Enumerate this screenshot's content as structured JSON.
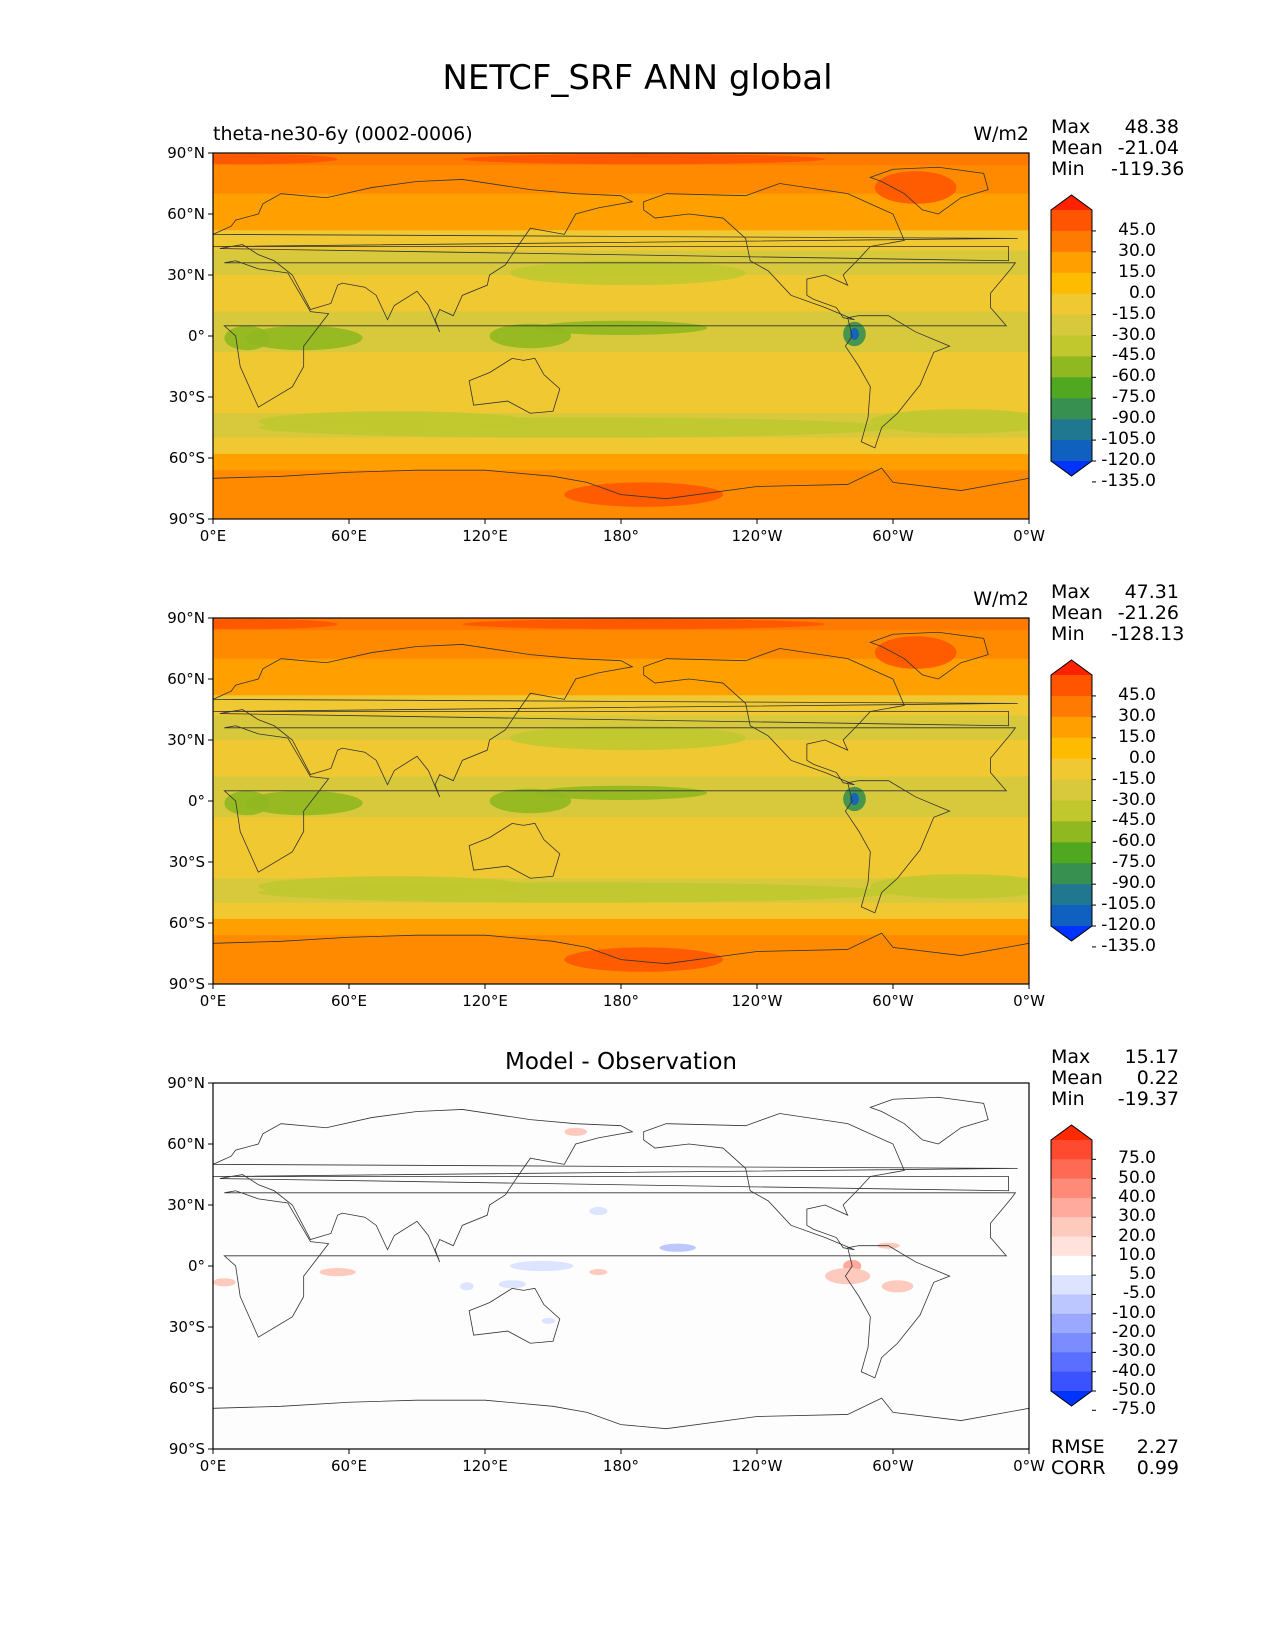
{
  "title": "NETCF_SRF ANN global",
  "x_ticks": [
    "0°E",
    "60°E",
    "120°E",
    "180°",
    "120°W",
    "60°W",
    "0°W"
  ],
  "y_ticks": [
    "90°N",
    "60°N",
    "30°N",
    "0°",
    "30°S",
    "60°S",
    "90°S"
  ],
  "panels": [
    {
      "left_title": "theta-ne30-6y (0002-0006)",
      "center_title": "",
      "units": "W/m2",
      "stats": [
        {
          "label": "Max",
          "value": "48.38"
        },
        {
          "label": "Mean",
          "value": "-21.04"
        },
        {
          "label": "Min",
          "value": "-119.36"
        }
      ],
      "colorbar": {
        "labels": [
          "45.0",
          "30.0",
          "15.0",
          "0.0",
          "-15.0",
          "-30.0",
          "-45.0",
          "-60.0",
          "-75.0",
          "-90.0",
          "-105.0",
          "-120.0",
          "-135.0"
        ],
        "colors": [
          "#ff2200",
          "#ff5500",
          "#ff7a00",
          "#ff9f00",
          "#ffbb00",
          "#f0c832",
          "#d8c83c",
          "#c0c82e",
          "#90b820",
          "#50a820",
          "#389050",
          "#207890",
          "#1060c0",
          "#0033ff"
        ]
      }
    },
    {
      "left_title": "",
      "center_title": "",
      "units": "W/m2",
      "stats": [
        {
          "label": "Max",
          "value": "47.31"
        },
        {
          "label": "Mean",
          "value": "-21.26"
        },
        {
          "label": "Min",
          "value": "-128.13"
        }
      ],
      "colorbar": {
        "labels": [
          "45.0",
          "30.0",
          "15.0",
          "0.0",
          "-15.0",
          "-30.0",
          "-45.0",
          "-60.0",
          "-75.0",
          "-90.0",
          "-105.0",
          "-120.0",
          "-135.0"
        ],
        "colors": [
          "#ff2200",
          "#ff5500",
          "#ff7a00",
          "#ff9f00",
          "#ffbb00",
          "#f0c832",
          "#d8c83c",
          "#c0c82e",
          "#90b820",
          "#50a820",
          "#389050",
          "#207890",
          "#1060c0",
          "#0033ff"
        ]
      }
    },
    {
      "left_title": "",
      "center_title": "Model - Observation",
      "units": "",
      "stats": [
        {
          "label": "Max",
          "value": "15.17"
        },
        {
          "label": "Mean",
          "value": "0.22"
        },
        {
          "label": "Min",
          "value": "-19.37"
        }
      ],
      "colorbar": {
        "labels": [
          "75.0",
          "50.0",
          "40.0",
          "30.0",
          "20.0",
          "10.0",
          "5.0",
          "-5.0",
          "-10.0",
          "-20.0",
          "-30.0",
          "-40.0",
          "-50.0",
          "-75.0"
        ],
        "colors": [
          "#ff2a00",
          "#ff4a30",
          "#ff6a55",
          "#ff8a78",
          "#ffaa9c",
          "#ffcabe",
          "#ffe2dc",
          "#ffffff",
          "#dde4ff",
          "#bcc6ff",
          "#9aa8ff",
          "#7a8cff",
          "#5a6eff",
          "#3a52ff",
          "#0033ff"
        ]
      },
      "footer": [
        {
          "label": "RMSE",
          "value": "2.27"
        },
        {
          "label": "CORR",
          "value": "0.99"
        }
      ]
    }
  ]
}
